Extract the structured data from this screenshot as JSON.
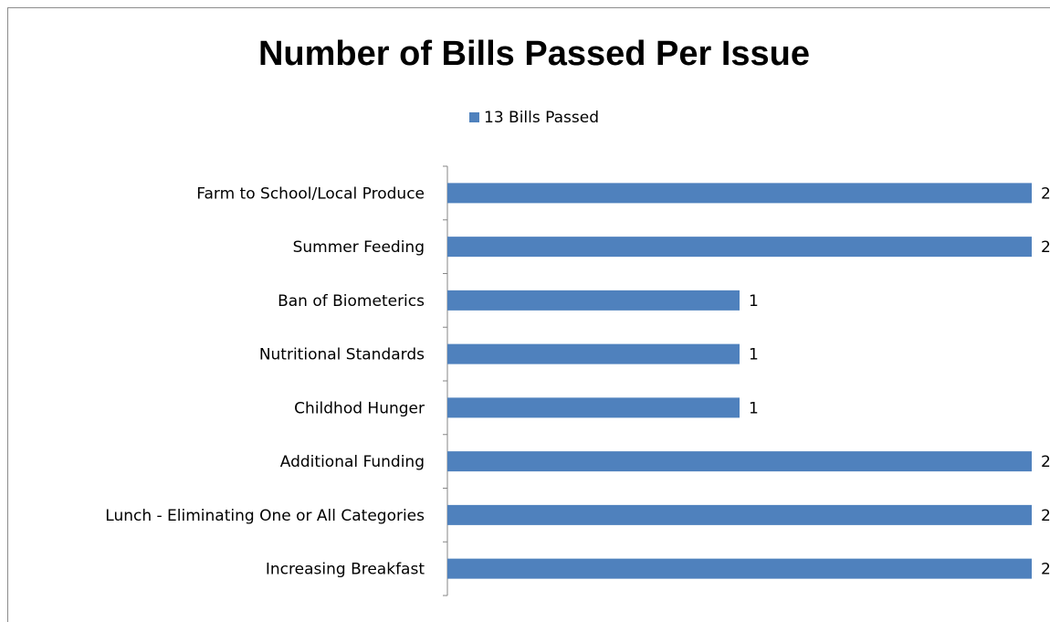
{
  "chart_data": {
    "type": "bar",
    "orientation": "horizontal",
    "title": "Number of Bills Passed Per Issue",
    "categories": [
      "Farm to School/Local Produce",
      "Summer Feeding",
      "Ban of Biometerics",
      "Nutritional Standards",
      "Childhod Hunger",
      "Additional Funding",
      "Lunch - Eliminating One or All Categories",
      "Increasing Breakfast"
    ],
    "series": [
      {
        "name": "13 Bills Passed",
        "values": [
          2,
          2,
          1,
          1,
          1,
          2,
          2,
          2
        ],
        "color": "#4f81bd"
      }
    ],
    "xlim": [
      0,
      2
    ],
    "xlabel": "",
    "ylabel": "",
    "legend_position": "top",
    "grid": false,
    "data_labels": true
  }
}
